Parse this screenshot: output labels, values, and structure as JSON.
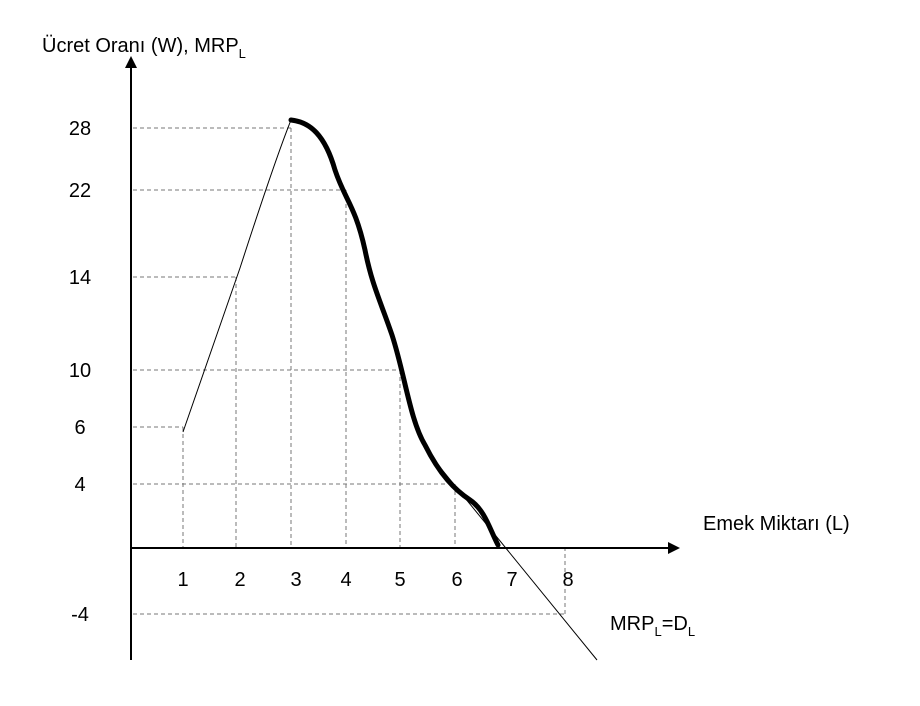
{
  "y_axis_label": {
    "main": "Ücret Oranı (W), MRP",
    "sub": "L"
  },
  "x_axis_label": "Emek Miktarı (L)",
  "curve_label": {
    "main": "MRP",
    "sub1": "L",
    "eq": "=D",
    "sub2": "L"
  },
  "x_ticks": [
    1,
    2,
    3,
    4,
    5,
    6,
    7,
    8
  ],
  "y_ticks": [
    28,
    22,
    14,
    10,
    6,
    4,
    -4
  ]
}
